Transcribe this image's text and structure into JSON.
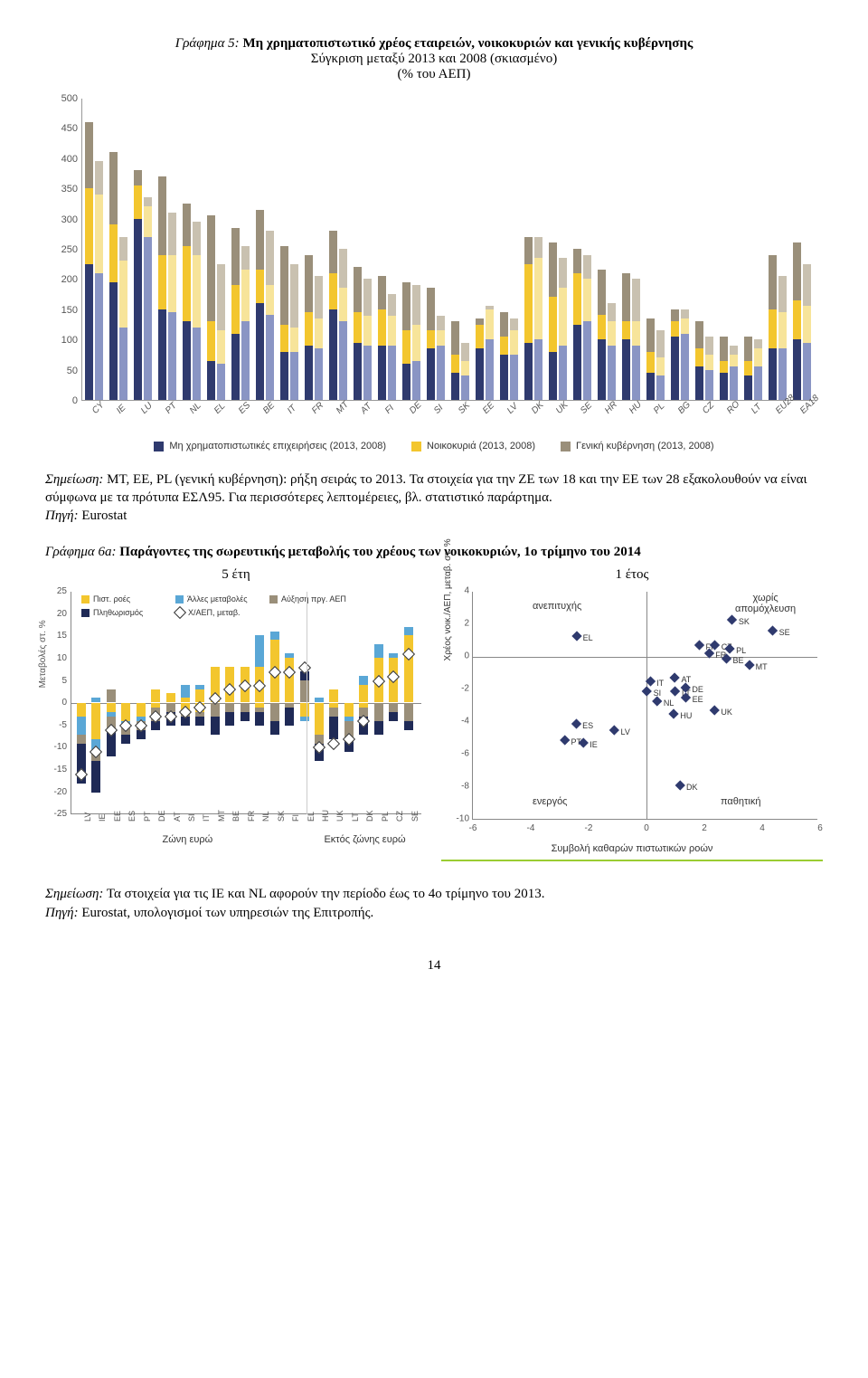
{
  "title5": {
    "prefix": "Γράφημα 5:",
    "bold": "Μη χρηματοπιστωτικό χρέος εταιρειών, νοικοκυριών και γενικής κυβέρνησης",
    "line2": "Σύγκριση μεταξύ 2013 και 2008 (σκιασμένο)",
    "line3": "(% του ΑΕΠ)"
  },
  "chart5": {
    "ymax": 500,
    "ytick_step": 50,
    "colors": {
      "nfc2013": "#2f3a6e",
      "nfc2008": "#8a95c4",
      "hh2013": "#f3c62e",
      "hh2008": "#f7e49a",
      "gov2013": "#9a8f7a",
      "gov2008": "#c9c1b0"
    },
    "legend": [
      {
        "sw": "#2f3a6e",
        "label": "Μη χρηματοπιστωτικές επιχειρήσεις (2013, 2008)"
      },
      {
        "sw": "#f3c62e",
        "label": "Νοικοκυριά (2013, 2008)"
      },
      {
        "sw": "#9a8f7a",
        "label": "Γενική κυβέρνηση (2013, 2008)"
      }
    ],
    "categories": [
      "CY",
      "IE",
      "LU",
      "PT",
      "NL",
      "EL",
      "ES",
      "BE",
      "IT",
      "FR",
      "MT",
      "AT",
      "FI",
      "DE",
      "SI",
      "SK",
      "EE",
      "LV",
      "DK",
      "UK",
      "SE",
      "HR",
      "HU",
      "PL",
      "BG",
      "CZ",
      "RO",
      "LT",
      "EU28",
      "EA18"
    ],
    "data": [
      {
        "c": "CY",
        "a": [
          225,
          125,
          110
        ],
        "b": [
          210,
          130,
          55
        ]
      },
      {
        "c": "IE",
        "a": [
          195,
          95,
          120
        ],
        "b": [
          120,
          110,
          40
        ]
      },
      {
        "c": "LU",
        "a": [
          300,
          55,
          25
        ],
        "b": [
          270,
          50,
          15
        ]
      },
      {
        "c": "PT",
        "a": [
          150,
          90,
          130
        ],
        "b": [
          145,
          95,
          70
        ]
      },
      {
        "c": "NL",
        "a": [
          130,
          125,
          70
        ],
        "b": [
          120,
          120,
          55
        ]
      },
      {
        "c": "EL",
        "a": [
          65,
          65,
          175
        ],
        "b": [
          60,
          55,
          110
        ]
      },
      {
        "c": "ES",
        "a": [
          110,
          80,
          95
        ],
        "b": [
          130,
          85,
          40
        ]
      },
      {
        "c": "BE",
        "a": [
          160,
          55,
          100
        ],
        "b": [
          140,
          50,
          90
        ]
      },
      {
        "c": "IT",
        "a": [
          80,
          45,
          130
        ],
        "b": [
          80,
          40,
          105
        ]
      },
      {
        "c": "FR",
        "a": [
          90,
          55,
          95
        ],
        "b": [
          85,
          50,
          70
        ]
      },
      {
        "c": "MT",
        "a": [
          150,
          60,
          70
        ],
        "b": [
          130,
          55,
          65
        ]
      },
      {
        "c": "AT",
        "a": [
          95,
          50,
          75
        ],
        "b": [
          90,
          50,
          60
        ]
      },
      {
        "c": "FI",
        "a": [
          90,
          60,
          55
        ],
        "b": [
          90,
          50,
          35
        ]
      },
      {
        "c": "DE",
        "a": [
          60,
          55,
          80
        ],
        "b": [
          65,
          60,
          65
        ]
      },
      {
        "c": "SI",
        "a": [
          85,
          30,
          70
        ],
        "b": [
          90,
          25,
          25
        ]
      },
      {
        "c": "SK",
        "a": [
          45,
          30,
          55
        ],
        "b": [
          40,
          25,
          30
        ]
      },
      {
        "c": "EE",
        "a": [
          85,
          40,
          10
        ],
        "b": [
          100,
          50,
          5
        ]
      },
      {
        "c": "LV",
        "a": [
          75,
          30,
          40
        ],
        "b": [
          75,
          40,
          20
        ]
      },
      {
        "c": "DK",
        "a": [
          95,
          130,
          45
        ],
        "b": [
          100,
          135,
          35
        ]
      },
      {
        "c": "UK",
        "a": [
          80,
          90,
          90
        ],
        "b": [
          90,
          95,
          50
        ]
      },
      {
        "c": "SE",
        "a": [
          125,
          85,
          40
        ],
        "b": [
          130,
          70,
          40
        ]
      },
      {
        "c": "HR",
        "a": [
          100,
          40,
          75
        ],
        "b": [
          90,
          40,
          30
        ]
      },
      {
        "c": "HU",
        "a": [
          100,
          30,
          80
        ],
        "b": [
          90,
          40,
          70
        ]
      },
      {
        "c": "PL",
        "a": [
          45,
          35,
          55
        ],
        "b": [
          40,
          30,
          45
        ]
      },
      {
        "c": "BG",
        "a": [
          105,
          25,
          20
        ],
        "b": [
          110,
          25,
          15
        ]
      },
      {
        "c": "CZ",
        "a": [
          55,
          30,
          45
        ],
        "b": [
          50,
          25,
          30
        ]
      },
      {
        "c": "RO",
        "a": [
          45,
          20,
          40
        ],
        "b": [
          55,
          20,
          15
        ]
      },
      {
        "c": "LT",
        "a": [
          40,
          25,
          40
        ],
        "b": [
          55,
          30,
          15
        ]
      },
      {
        "c": "EU28",
        "a": [
          85,
          65,
          90
        ],
        "b": [
          85,
          60,
          60
        ]
      },
      {
        "c": "EA18",
        "a": [
          100,
          65,
          95
        ],
        "b": [
          95,
          60,
          70
        ]
      }
    ]
  },
  "note5": {
    "label": "Σημείωση:",
    "text": " MT, EE, PL (γενική κυβέρνηση): ρήξη σειράς το 2013. Τα στοιχεία για την ΖΕ των 18 και την ΕΕ των 28 εξακολουθούν να είναι σύμφωνα με τα πρότυπα ΕΣΛ95. Για περισσότερες λεπτομέρειες, βλ. στατιστικό παράρτημα.",
    "src_label": "Πηγή:",
    "src_text": " Eurostat"
  },
  "title6a": {
    "prefix": "Γράφημα 6a:",
    "bold": "Παράγοντες της σωρευτικής μεταβολής του χρέους των νοικοκυριών, 1ο τρίμηνο του 2014",
    "colA": "5 έτη",
    "colB": "1 έτος"
  },
  "chart6a_left": {
    "ymin": -25,
    "ymax": 25,
    "ystep": 5,
    "ylabel": "Μεταβολές στ. %",
    "region1": "Ζώνη ευρώ",
    "region2": "Εκτός ζώνης ευρώ",
    "colors": {
      "credit": "#f3c62e",
      "other": "#5aa7d6",
      "gdp": "#9a8f7a",
      "infl": "#1f2a56",
      "marker": "#333"
    },
    "legend": [
      {
        "sw": "#f3c62e",
        "label": "Πιστ. ροές"
      },
      {
        "sw": "#5aa7d6",
        "label": "Άλλες μεταβολές"
      },
      {
        "sw": "#9a8f7a",
        "label": "Αύξηση πργ. ΑΕΠ"
      },
      {
        "sw": "#1f2a56",
        "label": "Πληθωρισμός"
      },
      {
        "mk": true,
        "label": "Χ/ΑΕΠ, μεταβ."
      }
    ],
    "sep_index": 16,
    "cats": [
      "LV",
      "IE",
      "EE",
      "ES",
      "PT",
      "DE",
      "AT",
      "SI",
      "IT",
      "MT",
      "BE",
      "FR",
      "NL",
      "SK",
      "FI",
      "EL",
      "HU",
      "UK",
      "LT",
      "DK",
      "PL",
      "CZ",
      "SE"
    ],
    "bars": [
      {
        "c": "LV",
        "pos": [
          0,
          0,
          0,
          0
        ],
        "neg": [
          3,
          4,
          2,
          9
        ],
        "m": -16
      },
      {
        "c": "IE",
        "pos": [
          0,
          1,
          0,
          0
        ],
        "neg": [
          8,
          3,
          2,
          7
        ],
        "m": -11
      },
      {
        "c": "EE",
        "pos": [
          0,
          0,
          3,
          0
        ],
        "neg": [
          2,
          1,
          3,
          6
        ],
        "m": -6
      },
      {
        "c": "ES",
        "pos": [
          0,
          0,
          0,
          0
        ],
        "neg": [
          4,
          1,
          2,
          2
        ],
        "m": -5
      },
      {
        "c": "PT",
        "pos": [
          0,
          0,
          0,
          0
        ],
        "neg": [
          3,
          1,
          2,
          2
        ],
        "m": -5
      },
      {
        "c": "DE",
        "pos": [
          3,
          0,
          0,
          0
        ],
        "neg": [
          1,
          0,
          3,
          2
        ],
        "m": -3
      },
      {
        "c": "AT",
        "pos": [
          2,
          0,
          0,
          0
        ],
        "neg": [
          0,
          0,
          2,
          3
        ],
        "m": -3
      },
      {
        "c": "SI",
        "pos": [
          1,
          3,
          0,
          0
        ],
        "neg": [
          2,
          0,
          1,
          2
        ],
        "m": -2
      },
      {
        "c": "IT",
        "pos": [
          3,
          1,
          0,
          0
        ],
        "neg": [
          2,
          0,
          1,
          2
        ],
        "m": -1
      },
      {
        "c": "MT",
        "pos": [
          8,
          0,
          0,
          0
        ],
        "neg": [
          0,
          0,
          3,
          4
        ],
        "m": 1
      },
      {
        "c": "BE",
        "pos": [
          8,
          0,
          0,
          0
        ],
        "neg": [
          0,
          0,
          2,
          3
        ],
        "m": 3
      },
      {
        "c": "FR",
        "pos": [
          8,
          0,
          0,
          0
        ],
        "neg": [
          0,
          0,
          2,
          2
        ],
        "m": 4
      },
      {
        "c": "NL",
        "pos": [
          8,
          7,
          0,
          0
        ],
        "neg": [
          1,
          0,
          1,
          3
        ],
        "m": 4
      },
      {
        "c": "SK",
        "pos": [
          14,
          2,
          0,
          0
        ],
        "neg": [
          0,
          0,
          4,
          3
        ],
        "m": 7
      },
      {
        "c": "FI",
        "pos": [
          10,
          1,
          0,
          0
        ],
        "neg": [
          0,
          0,
          1,
          4
        ],
        "m": 7
      },
      {
        "c": "EL",
        "pos": [
          0,
          0,
          5,
          2
        ],
        "neg": [
          3,
          1,
          0,
          0
        ],
        "m": 8
      },
      {
        "c": "HU",
        "pos": [
          0,
          1,
          0,
          0
        ],
        "neg": [
          7,
          0,
          2,
          4
        ],
        "m": -10
      },
      {
        "c": "UK",
        "pos": [
          3,
          0,
          0,
          0
        ],
        "neg": [
          1,
          0,
          2,
          5
        ],
        "m": -9
      },
      {
        "c": "LT",
        "pos": [
          0,
          0,
          0,
          0
        ],
        "neg": [
          3,
          1,
          4,
          3
        ],
        "m": -8
      },
      {
        "c": "DK",
        "pos": [
          4,
          2,
          0,
          0
        ],
        "neg": [
          1,
          0,
          2,
          4
        ],
        "m": -4
      },
      {
        "c": "PL",
        "pos": [
          10,
          3,
          0,
          0
        ],
        "neg": [
          0,
          0,
          4,
          3
        ],
        "m": 5
      },
      {
        "c": "CZ",
        "pos": [
          10,
          1,
          0,
          0
        ],
        "neg": [
          0,
          0,
          2,
          2
        ],
        "m": 6
      },
      {
        "c": "SE",
        "pos": [
          15,
          2,
          0,
          0
        ],
        "neg": [
          0,
          0,
          4,
          2
        ],
        "m": 11
      }
    ]
  },
  "chart6a_right": {
    "xmin": -6,
    "xmax": 6,
    "xstep": 2,
    "ymin": -10,
    "ymax": 4,
    "ystep": 2,
    "ylabel": "Χρέος νοικ./ΑΕΠ, μεταβ. στ. %",
    "xlabel": "Συμβολή καθαρών πιστωτικών ροών",
    "quad": {
      "tl": "ανεπιτυχής",
      "tr": "χωρίς\nαπομόχλευση",
      "bl": "ενεργός",
      "br": "παθητική"
    },
    "points": [
      {
        "l": "EL",
        "x": -2.2,
        "y": 1.2
      },
      {
        "l": "SK",
        "x": 3.2,
        "y": 2.2
      },
      {
        "l": "SE",
        "x": 4.6,
        "y": 1.5
      },
      {
        "l": "FI",
        "x": 2.0,
        "y": 0.6
      },
      {
        "l": "CZ",
        "x": 2.6,
        "y": 0.6
      },
      {
        "l": "PL",
        "x": 3.1,
        "y": 0.4
      },
      {
        "l": "FR",
        "x": 2.4,
        "y": 0.1
      },
      {
        "l": "BE",
        "x": 3.0,
        "y": -0.2
      },
      {
        "l": "MT",
        "x": 3.8,
        "y": -0.6
      },
      {
        "l": "IT",
        "x": 0.3,
        "y": -1.6
      },
      {
        "l": "AT",
        "x": 1.2,
        "y": -1.4
      },
      {
        "l": "SI",
        "x": 0.2,
        "y": -2.2
      },
      {
        "l": "LT",
        "x": 1.2,
        "y": -2.2
      },
      {
        "l": "DE",
        "x": 1.6,
        "y": -2.0
      },
      {
        "l": "EE",
        "x": 1.6,
        "y": -2.6
      },
      {
        "l": "NL",
        "x": 0.6,
        "y": -2.8
      },
      {
        "l": "UK",
        "x": 2.6,
        "y": -3.4
      },
      {
        "l": "HU",
        "x": 1.2,
        "y": -3.6
      },
      {
        "l": "ES",
        "x": -2.2,
        "y": -4.2
      },
      {
        "l": "LV",
        "x": -0.9,
        "y": -4.6
      },
      {
        "l": "PT",
        "x": -2.6,
        "y": -5.2
      },
      {
        "l": "IE",
        "x": -2.0,
        "y": -5.4
      },
      {
        "l": "DK",
        "x": 1.4,
        "y": -8.0
      }
    ]
  },
  "note6a": {
    "label": "Σημείωση:",
    "text": " Τα στοιχεία για τις IE και NL αφορούν την περίοδο έως το 4ο τρίμηνο του 2013.",
    "src_label": "Πηγή:",
    "src_text": " Eurostat, υπολογισμοί των υπηρεσιών της Επιτροπής."
  },
  "page_number": "14"
}
